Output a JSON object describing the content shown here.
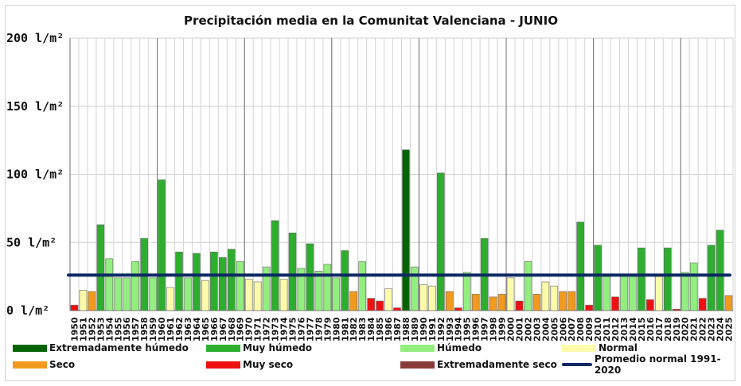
{
  "chart_data": {
    "type": "bar",
    "title": "Precipitación media en la Comunitat Valenciana - JUNIO",
    "ylim": [
      0,
      200
    ],
    "yticks": [
      0,
      50,
      100,
      150,
      200
    ],
    "ytick_labels": [
      "0 l/m²",
      "50 l/m²",
      "100 l/m²",
      "150 l/m²",
      "200 l/m²"
    ],
    "reference_line": {
      "name": "Promedio normal 1991-2020",
      "value": 26
    },
    "categories": [
      "1950",
      "1951",
      "1952",
      "1953",
      "1954",
      "1955",
      "1956",
      "1957",
      "1958",
      "1959",
      "1960",
      "1961",
      "1962",
      "1963",
      "1964",
      "1965",
      "1966",
      "1967",
      "1968",
      "1969",
      "1970",
      "1971",
      "1972",
      "1973",
      "1974",
      "1975",
      "1976",
      "1977",
      "1978",
      "1979",
      "1980",
      "1981",
      "1982",
      "1983",
      "1984",
      "1985",
      "1986",
      "1987",
      "1988",
      "1989",
      "1990",
      "1991",
      "1992",
      "1993",
      "1994",
      "1995",
      "1996",
      "1997",
      "1998",
      "1999",
      "2000",
      "2001",
      "2002",
      "2003",
      "2004",
      "2005",
      "2006",
      "2007",
      "2008",
      "2009",
      "2010",
      "2011",
      "2012",
      "2013",
      "2014",
      "2015",
      "2016",
      "2017",
      "2018",
      "2019",
      "2020",
      "2021",
      "2022",
      "2023",
      "2024",
      "2025"
    ],
    "values": [
      4,
      15,
      14,
      63,
      38,
      24,
      24,
      36,
      53,
      24,
      96,
      17,
      43,
      24,
      42,
      22,
      43,
      39,
      45,
      36,
      23,
      21,
      32,
      66,
      23,
      57,
      31,
      49,
      29,
      34,
      24,
      44,
      14,
      36,
      9,
      7,
      16,
      2,
      118,
      32,
      19,
      18,
      101,
      14,
      2,
      28,
      12,
      53,
      10,
      12,
      24,
      7,
      36,
      12,
      21,
      18,
      14,
      14,
      65,
      4,
      48,
      25,
      10,
      25,
      25,
      46,
      8,
      25,
      46,
      1,
      28,
      35,
      9,
      48,
      59,
      11
    ],
    "classes": [
      "ms",
      "n",
      "s",
      "mh",
      "h",
      "h",
      "h",
      "h",
      "mh",
      "h",
      "mh",
      "n",
      "mh",
      "h",
      "mh",
      "n",
      "mh",
      "mh",
      "mh",
      "h",
      "n",
      "n",
      "h",
      "mh",
      "n",
      "mh",
      "h",
      "mh",
      "h",
      "h",
      "h",
      "mh",
      "s",
      "h",
      "ms",
      "ms",
      "n",
      "ms",
      "eh",
      "h",
      "n",
      "n",
      "mh",
      "s",
      "ms",
      "h",
      "s",
      "mh",
      "s",
      "s",
      "n",
      "ms",
      "h",
      "s",
      "n",
      "n",
      "s",
      "s",
      "mh",
      "ms",
      "mh",
      "h",
      "ms",
      "h",
      "h",
      "mh",
      "ms",
      "n",
      "mh",
      "ms",
      "h",
      "h",
      "ms",
      "mh",
      "mh",
      "s"
    ],
    "legend": [
      {
        "key": "eh",
        "label": "Extremadamente húmedo",
        "color": "#006400"
      },
      {
        "key": "mh",
        "label": "Muy húmedo",
        "color": "#2eae2e"
      },
      {
        "key": "h",
        "label": "Húmedo",
        "color": "#92ee7e"
      },
      {
        "key": "n",
        "label": "Normal",
        "color": "#fdfbaa"
      },
      {
        "key": "s",
        "label": "Seco",
        "color": "#f29a1e"
      },
      {
        "key": "ms",
        "label": "Muy seco",
        "color": "#ee1111"
      },
      {
        "key": "es",
        "label": "Extremadamente seco",
        "color": "#8b3a3a"
      },
      {
        "key": "line",
        "label": "Promedio normal 1991-2020",
        "color": "#0d2a63"
      }
    ],
    "grid": true,
    "legend_position": "bottom"
  }
}
